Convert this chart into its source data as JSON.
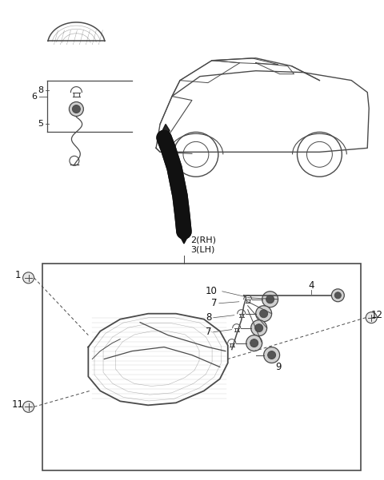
{
  "bg_color": "#ffffff",
  "line_color": "#4a4a4a",
  "dark_color": "#111111",
  "label_color": "#111111",
  "fig_width": 4.8,
  "fig_height": 6.01,
  "dpi": 100
}
